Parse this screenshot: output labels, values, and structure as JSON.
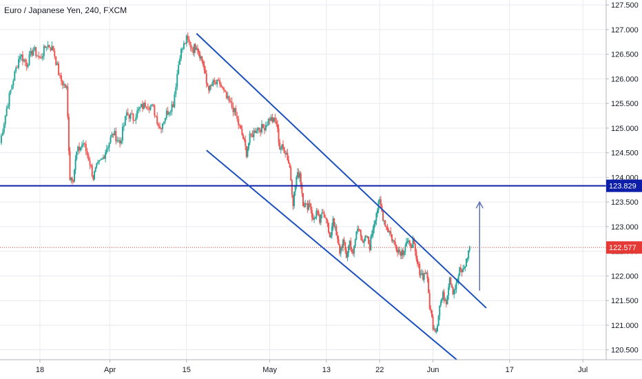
{
  "header": {
    "title": "Euro / Japanese Yen, 240, FXCM"
  },
  "chart_data": {
    "type": "candlestick",
    "title": "Euro / Japanese Yen, 240, FXCM",
    "ylim": [
      120.3,
      127.6
    ],
    "y_ticks": [
      120.5,
      121.0,
      121.5,
      122.0,
      122.5,
      123.0,
      123.5,
      124.0,
      124.5,
      125.0,
      125.5,
      126.0,
      126.5,
      127.0,
      127.5
    ],
    "y_tick_labels": [
      "120.500",
      "121.000",
      "121.500",
      "122.000",
      "122.500",
      "123.000",
      "123.500",
      "124.000",
      "124.500",
      "125.000",
      "125.500",
      "126.000",
      "126.500",
      "127.000",
      "127.500"
    ],
    "x_ticks": [
      {
        "label": "18",
        "t": 12
      },
      {
        "label": "Apr",
        "t": 33
      },
      {
        "label": "15",
        "t": 56
      },
      {
        "label": "May",
        "t": 81
      },
      {
        "label": "13",
        "t": 98
      },
      {
        "label": "22",
        "t": 114
      },
      {
        "label": "Jun",
        "t": 130
      },
      {
        "label": "17",
        "t": 153
      },
      {
        "label": "Jul",
        "t": 175
      }
    ],
    "xlim": [
      0,
      182
    ],
    "close_path": [
      [
        0,
        124.7
      ],
      [
        2,
        125.4
      ],
      [
        4,
        126.0
      ],
      [
        6,
        126.5
      ],
      [
        8,
        126.3
      ],
      [
        10,
        126.6
      ],
      [
        12,
        126.4
      ],
      [
        14,
        126.7
      ],
      [
        16,
        126.6
      ],
      [
        18,
        126.0
      ],
      [
        20,
        125.8
      ],
      [
        21,
        124.0
      ],
      [
        22,
        124.0
      ],
      [
        23,
        124.5
      ],
      [
        25,
        124.7
      ],
      [
        27,
        124.3
      ],
      [
        28,
        124.0
      ],
      [
        29,
        124.2
      ],
      [
        31,
        124.4
      ],
      [
        32,
        124.6
      ],
      [
        34,
        124.9
      ],
      [
        36,
        124.7
      ],
      [
        38,
        125.3
      ],
      [
        40,
        125.2
      ],
      [
        42,
        125.4
      ],
      [
        44,
        125.5
      ],
      [
        46,
        125.4
      ],
      [
        48,
        125.0
      ],
      [
        50,
        125.3
      ],
      [
        52,
        125.5
      ],
      [
        54,
        126.5
      ],
      [
        56,
        126.8
      ],
      [
        58,
        126.6
      ],
      [
        59,
        126.7
      ],
      [
        60,
        126.5
      ],
      [
        61,
        126.3
      ],
      [
        62,
        125.9
      ],
      [
        63,
        125.8
      ],
      [
        64,
        125.9
      ],
      [
        66,
        125.9
      ],
      [
        68,
        125.6
      ],
      [
        70,
        125.4
      ],
      [
        72,
        125.0
      ],
      [
        73,
        124.8
      ],
      [
        74,
        124.5
      ],
      [
        75,
        124.8
      ],
      [
        77,
        125.0
      ],
      [
        79,
        125.0
      ],
      [
        81,
        125.2
      ],
      [
        83,
        125.1
      ],
      [
        84,
        124.6
      ],
      [
        85,
        124.6
      ],
      [
        86,
        124.5
      ],
      [
        87,
        124.2
      ],
      [
        88,
        123.5
      ],
      [
        89,
        124.0
      ],
      [
        90,
        124.1
      ],
      [
        91,
        123.5
      ],
      [
        92,
        123.4
      ],
      [
        93,
        123.5
      ],
      [
        94,
        123.1
      ],
      [
        95,
        123.3
      ],
      [
        96,
        123.1
      ],
      [
        97,
        123.3
      ],
      [
        98,
        123.2
      ],
      [
        99,
        122.7
      ],
      [
        100,
        123.2
      ],
      [
        101,
        122.8
      ],
      [
        102,
        122.5
      ],
      [
        103,
        122.7
      ],
      [
        104,
        122.4
      ],
      [
        105,
        122.7
      ],
      [
        106,
        122.4
      ],
      [
        107,
        122.9
      ],
      [
        108,
        123.0
      ],
      [
        109,
        122.6
      ],
      [
        110,
        122.8
      ],
      [
        111,
        122.6
      ],
      [
        112,
        123.0
      ],
      [
        113,
        123.3
      ],
      [
        114,
        123.5
      ],
      [
        115,
        123.2
      ],
      [
        116,
        123.0
      ],
      [
        117,
        122.9
      ],
      [
        118,
        122.7
      ],
      [
        119,
        122.6
      ],
      [
        120,
        122.5
      ],
      [
        121,
        122.5
      ],
      [
        122,
        122.7
      ],
      [
        123,
        122.6
      ],
      [
        124,
        122.7
      ],
      [
        125,
        122.3
      ],
      [
        126,
        122.1
      ],
      [
        127,
        122.0
      ],
      [
        128,
        122.1
      ],
      [
        129,
        121.4
      ],
      [
        130,
        121.0
      ],
      [
        131,
        120.9
      ],
      [
        132,
        121.4
      ],
      [
        133,
        121.6
      ],
      [
        134,
        121.5
      ],
      [
        135,
        122.0
      ],
      [
        136,
        121.7
      ],
      [
        137,
        121.8
      ],
      [
        138,
        122.1
      ],
      [
        139,
        122.1
      ],
      [
        140,
        122.3
      ],
      [
        141,
        122.6
      ]
    ],
    "horizontal_level": {
      "value": 123.829,
      "label": "123.829",
      "color": "#0d1fa8"
    },
    "last_price": {
      "value": 122.577,
      "label": "122.577",
      "color": "#e53935"
    },
    "channel_upper": [
      [
        59,
        126.92
      ],
      [
        146,
        121.35
      ]
    ],
    "channel_lower": [
      [
        62,
        124.55
      ],
      [
        138,
        120.25
      ]
    ],
    "projection_arrow": {
      "from": [
        144,
        121.7
      ],
      "to": [
        144,
        123.5
      ],
      "color": "#5b6fb5"
    },
    "colors": {
      "up": "#26a69a",
      "down": "#ef5350",
      "channel": "#1a4fbb",
      "grid": "#e6e9ef"
    }
  }
}
